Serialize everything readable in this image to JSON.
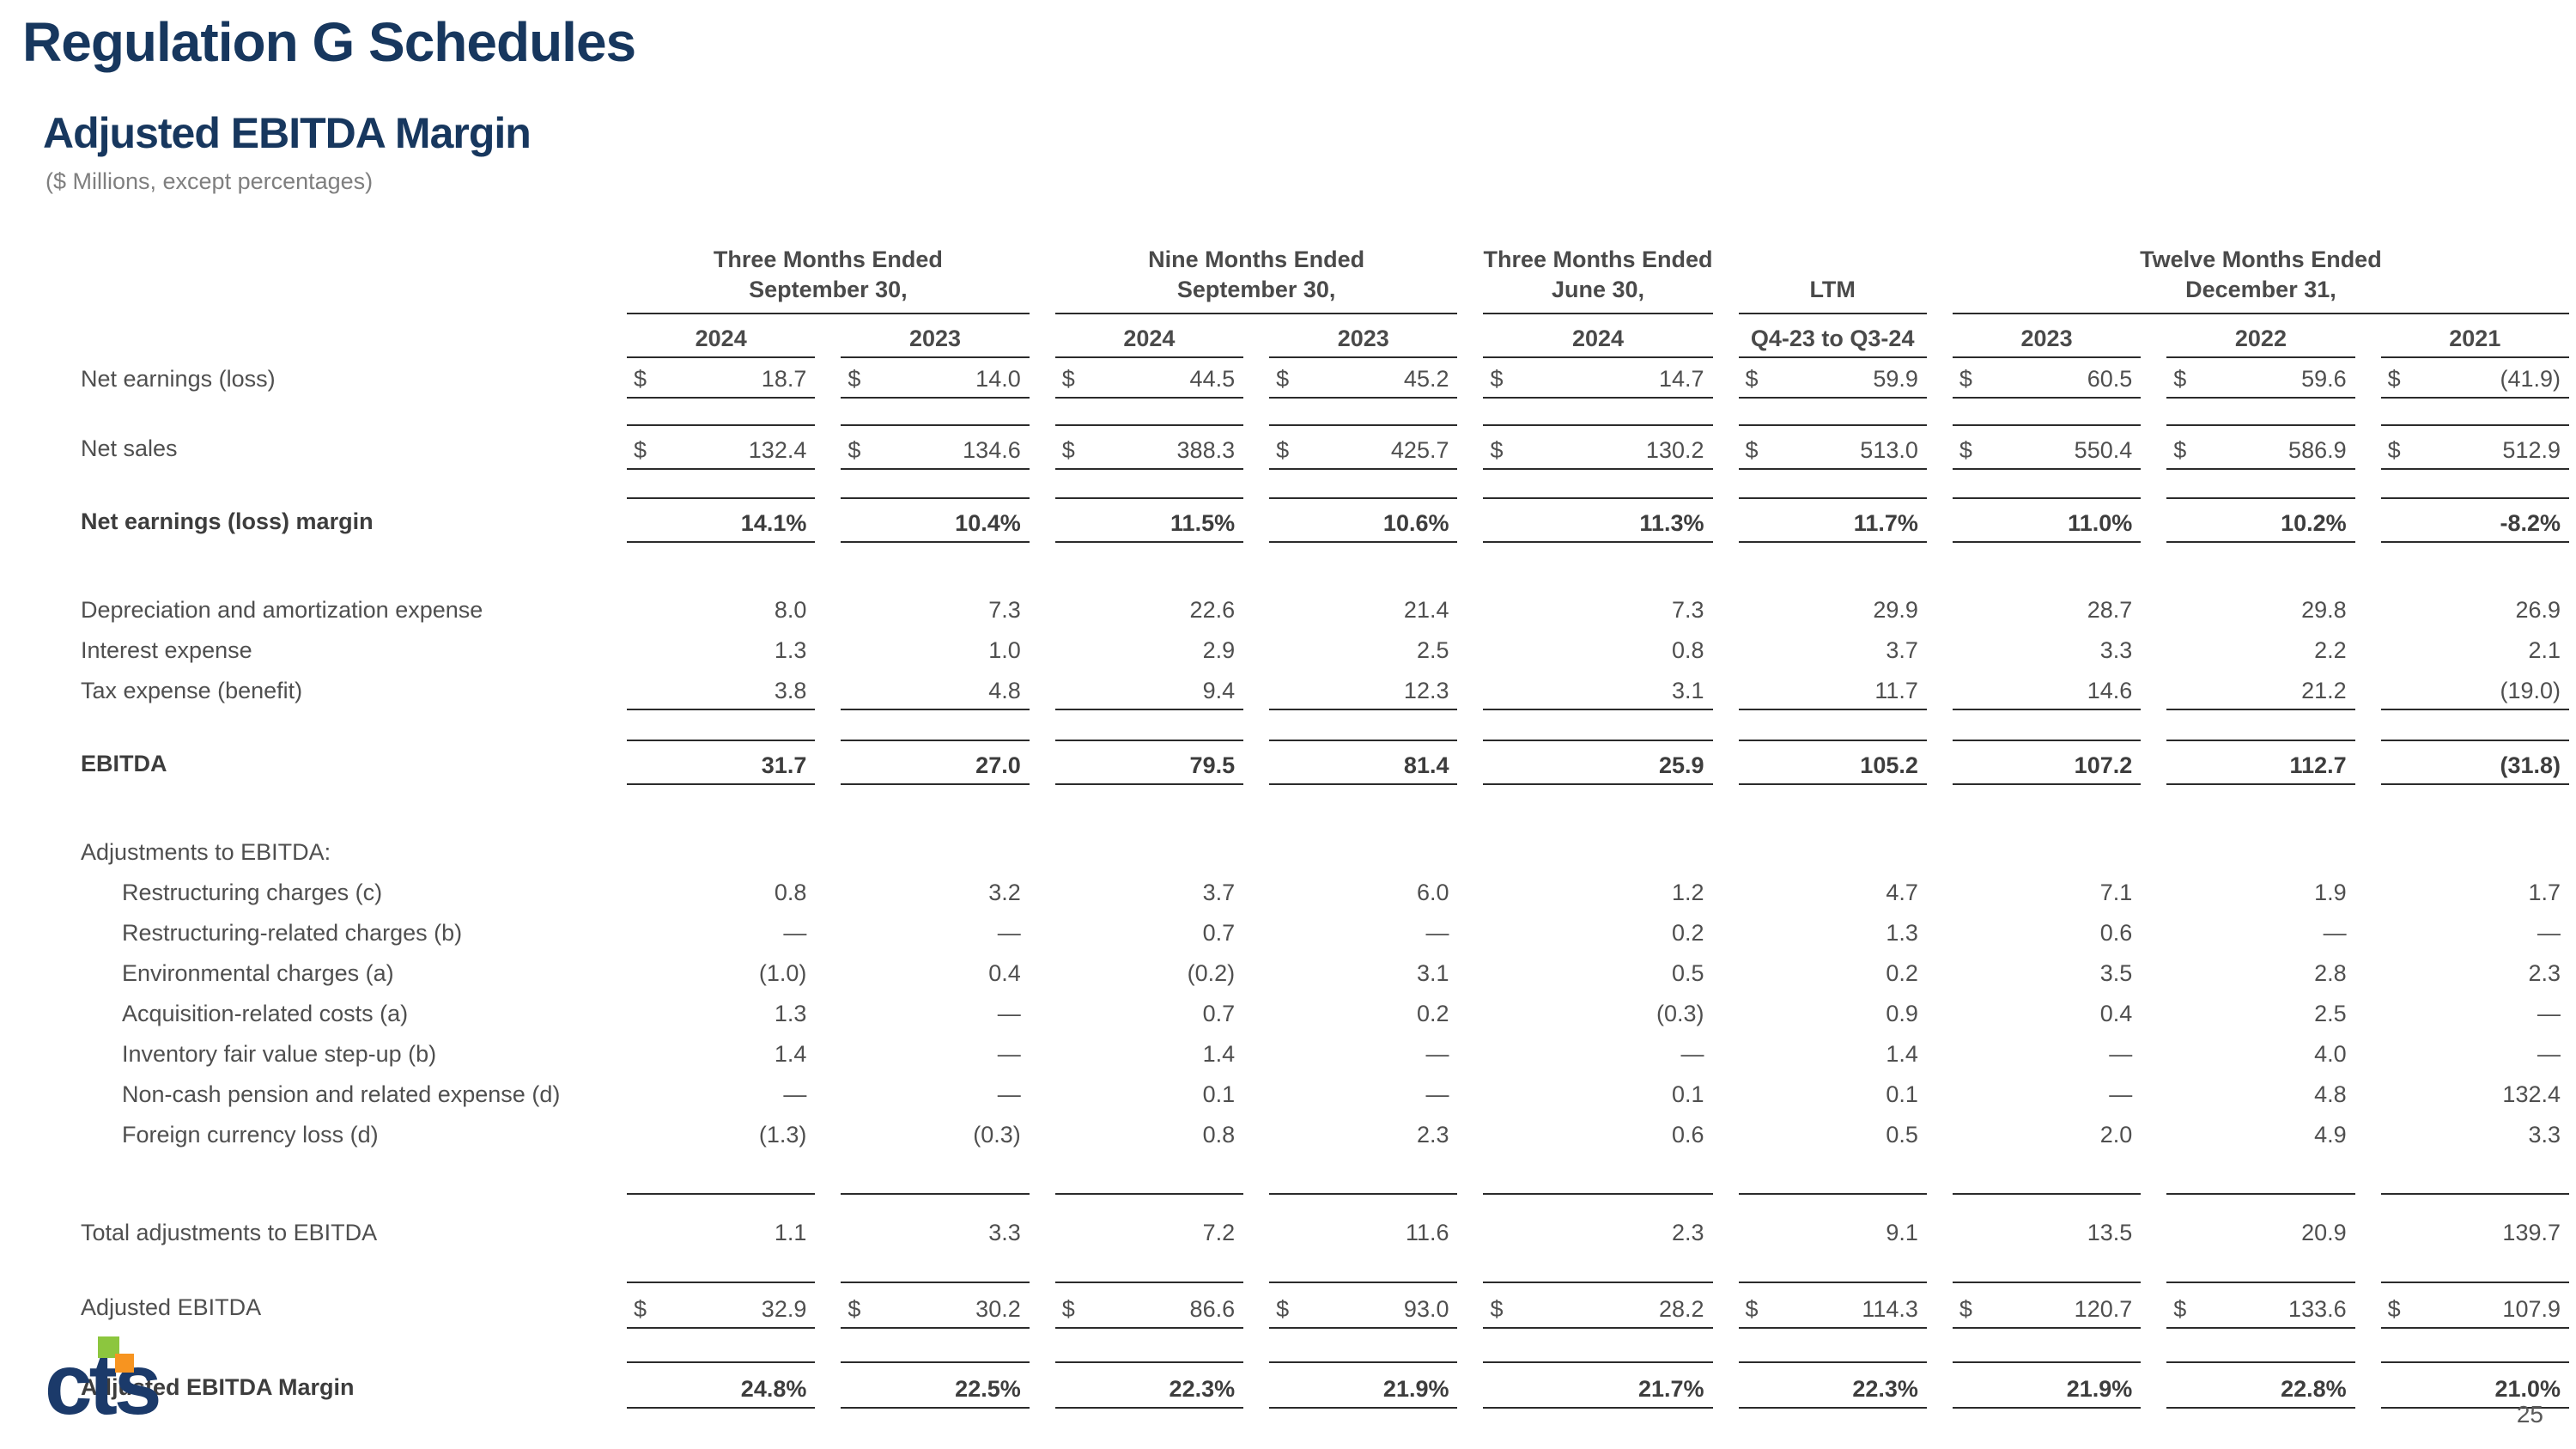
{
  "slide": {
    "title": "Regulation G Schedules",
    "subtitle": "Adjusted EBITDA Margin",
    "units_note": "($ Millions, except percentages)",
    "page_number": "25"
  },
  "logo": {
    "text": "cts",
    "navy": "#1b3a6a",
    "green": "#8cc63e",
    "orange": "#f79420"
  },
  "colors": {
    "title_navy": "#17375e",
    "table_text": "#4f4f4f",
    "rule_line": "#2b2b2b"
  },
  "table": {
    "column_groups": [
      {
        "label_lines": [
          "Three Months Ended",
          "September 30,"
        ],
        "years": [
          "2024",
          "2023"
        ]
      },
      {
        "label_lines": [
          "Nine Months Ended",
          "September 30,"
        ],
        "years": [
          "2024",
          "2023"
        ]
      },
      {
        "label_lines": [
          "Three Months Ended",
          "June 30,"
        ],
        "years": [
          "2024"
        ]
      },
      {
        "label_lines": [
          "LTM"
        ],
        "years": [
          "Q4-23 to Q3-24"
        ]
      },
      {
        "label_lines": [
          "Twelve Months Ended",
          "December 31,"
        ],
        "years": [
          "2023",
          "2022",
          "2021"
        ]
      }
    ],
    "rows": [
      {
        "label": "Net earnings (loss)",
        "dollar": true,
        "style": "bb",
        "h": 40,
        "values": [
          "18.7",
          "14.0",
          "44.5",
          "45.2",
          "14.7",
          "59.9",
          "60.5",
          "59.6",
          "(41.9)"
        ]
      },
      {
        "spacer": 30
      },
      {
        "label": "Net sales",
        "dollar": true,
        "style": "tb",
        "h": 44,
        "values": [
          "132.4",
          "134.6",
          "388.3",
          "425.7",
          "130.2",
          "513.0",
          "550.4",
          "586.9",
          "512.9"
        ]
      },
      {
        "spacer": 32
      },
      {
        "label": "Net earnings (loss) margin",
        "bold": true,
        "style": "tb",
        "h": 44,
        "values": [
          "14.1%",
          "10.4%",
          "11.5%",
          "10.6%",
          "11.3%",
          "11.7%",
          "11.0%",
          "10.2%",
          "-8.2%"
        ]
      },
      {
        "spacer": 52
      },
      {
        "label": "Depreciation and amortization expense",
        "h": 42,
        "values": [
          "8.0",
          "7.3",
          "22.6",
          "21.4",
          "7.3",
          "29.9",
          "28.7",
          "29.8",
          "26.9"
        ]
      },
      {
        "label": "Interest expense",
        "h": 42,
        "values": [
          "1.3",
          "1.0",
          "2.9",
          "2.5",
          "0.8",
          "3.7",
          "3.3",
          "2.2",
          "2.1"
        ]
      },
      {
        "label": "Tax expense (benefit)",
        "style": "bb",
        "h": 42,
        "values": [
          "3.8",
          "4.8",
          "9.4",
          "12.3",
          "3.1",
          "11.7",
          "14.6",
          "21.2",
          "(19.0)"
        ]
      },
      {
        "spacer": 34
      },
      {
        "label": "EBITDA",
        "bold": true,
        "style": "tb",
        "h": 44,
        "values": [
          "31.7",
          "27.0",
          "79.5",
          "81.4",
          "25.9",
          "105.2",
          "107.2",
          "112.7",
          "(31.8)"
        ]
      },
      {
        "spacer": 50
      },
      {
        "label": "Adjustments to EBITDA:",
        "section": true,
        "h": 44
      },
      {
        "label": "Restructuring charges (c)",
        "indent": 1,
        "h": 42,
        "values": [
          "0.8",
          "3.2",
          "3.7",
          "6.0",
          "1.2",
          "4.7",
          "7.1",
          "1.9",
          "1.7"
        ]
      },
      {
        "label": "Restructuring-related charges (b)",
        "indent": 1,
        "h": 42,
        "values": [
          "—",
          "—",
          "0.7",
          "—",
          "0.2",
          "1.3",
          "0.6",
          "—",
          "—"
        ]
      },
      {
        "label": "Environmental charges (a)",
        "indent": 1,
        "h": 42,
        "values": [
          "(1.0)",
          "0.4",
          "(0.2)",
          "3.1",
          "0.5",
          "0.2",
          "3.5",
          "2.8",
          "2.3"
        ]
      },
      {
        "label": "Acquisition-related costs (a)",
        "indent": 1,
        "h": 42,
        "values": [
          "1.3",
          "—",
          "0.7",
          "0.2",
          "(0.3)",
          "0.9",
          "0.4",
          "2.5",
          "—"
        ]
      },
      {
        "label": "Inventory fair value step-up (b)",
        "indent": 1,
        "h": 42,
        "values": [
          "1.4",
          "—",
          "1.4",
          "—",
          "—",
          "1.4",
          "—",
          "4.0",
          "—"
        ]
      },
      {
        "label": "Non-cash pension and related expense (d)",
        "indent": 1,
        "h": 42,
        "values": [
          "—",
          "—",
          "0.1",
          "—",
          "0.1",
          "0.1",
          "—",
          "4.8",
          "132.4"
        ]
      },
      {
        "label": "Foreign currency loss (d)",
        "indent": 1,
        "h": 42,
        "values": [
          "(1.3)",
          "(0.3)",
          "0.8",
          "2.3",
          "0.6",
          "0.5",
          "2.0",
          "4.9",
          "3.3"
        ]
      },
      {
        "spacer": 42,
        "line": true
      },
      {
        "label": "Total adjustments to EBITDA",
        "h": 60,
        "values": [
          "1.1",
          "3.3",
          "7.2",
          "11.6",
          "2.3",
          "9.1",
          "13.5",
          "20.9",
          "139.7"
        ]
      },
      {
        "spacer": 36
      },
      {
        "label": "Adjusted EBITDA",
        "dollar": true,
        "style": "tb",
        "h": 46,
        "values": [
          "32.9",
          "30.2",
          "86.6",
          "93.0",
          "28.2",
          "114.3",
          "120.7",
          "133.6",
          "107.9"
        ]
      },
      {
        "spacer": 38
      },
      {
        "label": "Adjusted EBITDA Margin",
        "bold": true,
        "style": "tb",
        "h": 46,
        "values": [
          "24.8%",
          "22.5%",
          "22.3%",
          "21.9%",
          "21.7%",
          "22.3%",
          "21.9%",
          "22.8%",
          "21.0%"
        ]
      }
    ]
  }
}
